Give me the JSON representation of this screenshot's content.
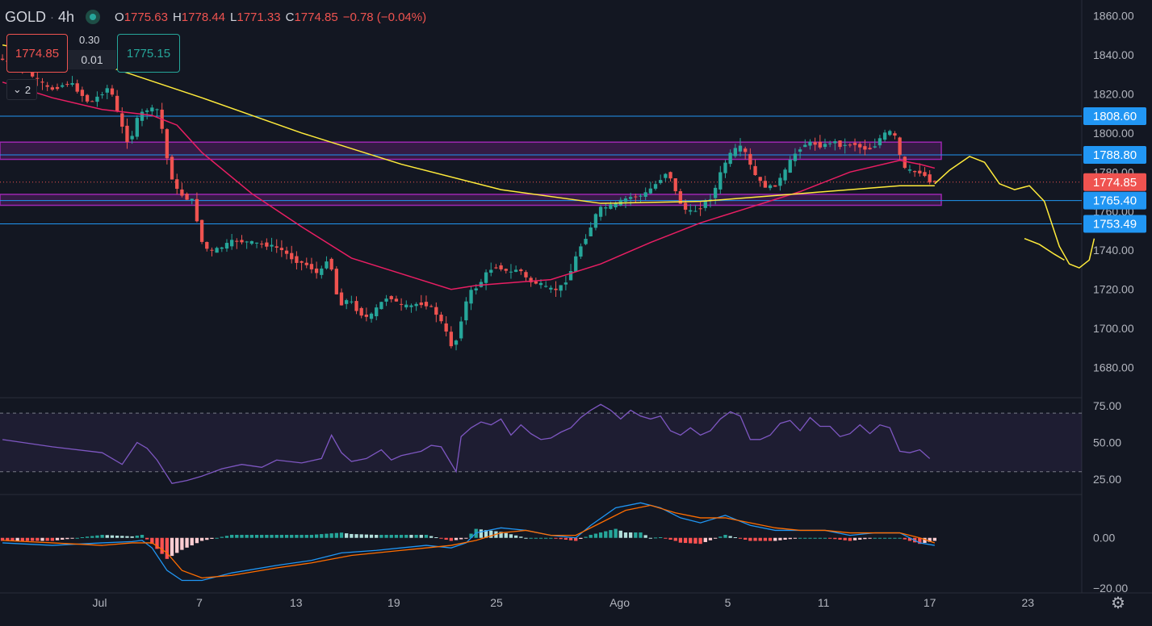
{
  "header": {
    "symbol": "GOLD",
    "separator": "·",
    "timeframe": "4h",
    "open_key": "O",
    "open": "1775.63",
    "high_key": "H",
    "high": "1778.44",
    "low_key": "L",
    "low": "1771.33",
    "close_key": "C",
    "close": "1774.85",
    "change": "−0.78 (−0.04%)"
  },
  "trade": {
    "sell_price": "1774.85",
    "buy_price": "1775.15",
    "spread_top": "0.30",
    "spread": "0.01",
    "collapse_count": "2"
  },
  "colors": {
    "background": "#131722",
    "up": "#26a69a",
    "down": "#ef5350",
    "ma_fast": "#e91e63",
    "ma_slow": "#ffeb3b",
    "hline": "#2196f3",
    "zone": "#9c27b0",
    "rsi": "#7e57c2",
    "macd": "#2196f3",
    "signal": "#ff6d00"
  },
  "chart_data": [
    {
      "type": "candlestick",
      "title": "GOLD · 4h",
      "ylim": [
        1665,
        1868
      ],
      "y_ticks": [
        "1860.00",
        "1840.00",
        "1820.00",
        "1800.00",
        "1780.00",
        "1740.00",
        "1720.00",
        "1700.00",
        "1680.00"
      ],
      "x_ticks": [
        "Jul",
        "7",
        "13",
        "19",
        "25",
        "Ago",
        "5",
        "11",
        "17",
        "23"
      ],
      "current_price": 1774.85,
      "current_price_label": "1774.85",
      "hlines": [
        {
          "value": 1808.6,
          "label": "1808.60"
        },
        {
          "value": 1788.8,
          "label": "1788.80"
        },
        {
          "value": 1765.4,
          "label": "1765.40"
        },
        {
          "value": 1753.49,
          "label": "1753.49"
        }
      ],
      "overlapped_tick_label": "1760.00",
      "zones": [
        [
          1786.5,
          1795.3
        ],
        [
          1763.0,
          1768.6
        ]
      ],
      "price_path": [
        [
          0,
          1838
        ],
        [
          5,
          1832
        ],
        [
          10,
          1822
        ],
        [
          14,
          1826
        ],
        [
          18,
          1815
        ],
        [
          22,
          1824
        ],
        [
          24,
          1806
        ],
        [
          26,
          1793
        ],
        [
          27,
          1805
        ],
        [
          29,
          1812
        ],
        [
          32,
          1812
        ],
        [
          33,
          1792
        ],
        [
          35,
          1772
        ],
        [
          37,
          1767
        ],
        [
          39,
          1765
        ],
        [
          40,
          1746
        ],
        [
          42,
          1739
        ],
        [
          44,
          1741
        ],
        [
          47,
          1745
        ],
        [
          50,
          1744
        ],
        [
          53,
          1743
        ],
        [
          56,
          1741
        ],
        [
          59,
          1735
        ],
        [
          62,
          1732
        ],
        [
          64,
          1727
        ],
        [
          66,
          1738
        ],
        [
          67,
          1723
        ],
        [
          68,
          1712
        ],
        [
          70,
          1715
        ],
        [
          72,
          1708
        ],
        [
          74,
          1705
        ],
        [
          76,
          1712
        ],
        [
          78,
          1717
        ],
        [
          80,
          1712
        ],
        [
          82,
          1711
        ],
        [
          84,
          1713
        ],
        [
          86,
          1712
        ],
        [
          88,
          1706
        ],
        [
          90,
          1695
        ],
        [
          91,
          1688
        ],
        [
          92,
          1700
        ],
        [
          94,
          1718
        ],
        [
          96,
          1722
        ],
        [
          98,
          1730
        ],
        [
          100,
          1732
        ],
        [
          102,
          1728
        ],
        [
          104,
          1731
        ],
        [
          106,
          1724
        ],
        [
          108,
          1723
        ],
        [
          110,
          1720
        ],
        [
          112,
          1720
        ],
        [
          114,
          1726
        ],
        [
          116,
          1740
        ],
        [
          118,
          1749
        ],
        [
          120,
          1761
        ],
        [
          123,
          1763
        ],
        [
          126,
          1767
        ],
        [
          129,
          1768
        ],
        [
          132,
          1775
        ],
        [
          134,
          1781
        ],
        [
          136,
          1766
        ],
        [
          138,
          1759
        ],
        [
          140,
          1761
        ],
        [
          143,
          1768
        ],
        [
          145,
          1783
        ],
        [
          147,
          1791
        ],
        [
          149,
          1793
        ],
        [
          151,
          1780
        ],
        [
          153,
          1773
        ],
        [
          155,
          1772
        ],
        [
          157,
          1778
        ],
        [
          159,
          1788
        ],
        [
          161,
          1794
        ],
        [
          163,
          1795
        ],
        [
          165,
          1793
        ],
        [
          167,
          1796
        ],
        [
          169,
          1793
        ],
        [
          171,
          1795
        ],
        [
          173,
          1792
        ],
        [
          175,
          1792
        ],
        [
          177,
          1799
        ],
        [
          179,
          1801
        ],
        [
          180,
          1795
        ],
        [
          181,
          1782
        ],
        [
          183,
          1780
        ],
        [
          185,
          1780
        ],
        [
          186,
          1776
        ],
        [
          187,
          1775
        ]
      ],
      "ma_fast_path": [
        [
          0,
          1826
        ],
        [
          10,
          1818
        ],
        [
          20,
          1812
        ],
        [
          30,
          1809
        ],
        [
          35,
          1804
        ],
        [
          40,
          1790
        ],
        [
          50,
          1769
        ],
        [
          60,
          1752
        ],
        [
          70,
          1736
        ],
        [
          80,
          1728
        ],
        [
          90,
          1720
        ],
        [
          95,
          1722
        ],
        [
          100,
          1723
        ],
        [
          110,
          1725
        ],
        [
          120,
          1733
        ],
        [
          130,
          1744
        ],
        [
          140,
          1754
        ],
        [
          150,
          1762
        ],
        [
          160,
          1770
        ],
        [
          170,
          1780
        ],
        [
          180,
          1786
        ],
        [
          184,
          1784
        ],
        [
          187,
          1782
        ]
      ],
      "ma_slow_path": [
        [
          0,
          1845
        ],
        [
          20,
          1835
        ],
        [
          40,
          1818
        ],
        [
          60,
          1800
        ],
        [
          80,
          1784
        ],
        [
          100,
          1771
        ],
        [
          120,
          1764
        ],
        [
          140,
          1765
        ],
        [
          160,
          1769
        ],
        [
          180,
          1773
        ],
        [
          187,
          1773
        ]
      ],
      "projection_path": [
        [
          187,
          1774
        ],
        [
          190,
          1781
        ],
        [
          194,
          1788
        ],
        [
          197,
          1785
        ],
        [
          200,
          1774
        ],
        [
          203,
          1771
        ],
        [
          206,
          1773
        ],
        [
          209,
          1765
        ],
        [
          212,
          1742
        ],
        [
          214,
          1733
        ],
        [
          216,
          1731
        ],
        [
          218,
          1735
        ],
        [
          219,
          1746
        ]
      ],
      "projection_extra": [
        [
          205,
          1746
        ],
        [
          208,
          1743
        ],
        [
          211,
          1738
        ],
        [
          213,
          1735
        ]
      ]
    },
    {
      "type": "line",
      "title": "RSI",
      "ylim": [
        15,
        80
      ],
      "y_ticks": [
        "75.00",
        "50.00",
        "25.00"
      ],
      "band": [
        30,
        70
      ],
      "values": [
        [
          0,
          52
        ],
        [
          10,
          47
        ],
        [
          20,
          43
        ],
        [
          24,
          35
        ],
        [
          27,
          50
        ],
        [
          29,
          46
        ],
        [
          31,
          38
        ],
        [
          34,
          22
        ],
        [
          37,
          24
        ],
        [
          40,
          27
        ],
        [
          44,
          32
        ],
        [
          48,
          35
        ],
        [
          52,
          33
        ],
        [
          55,
          38
        ],
        [
          60,
          36
        ],
        [
          64,
          39
        ],
        [
          66,
          55
        ],
        [
          68,
          43
        ],
        [
          70,
          37
        ],
        [
          73,
          39
        ],
        [
          76,
          45
        ],
        [
          78,
          38
        ],
        [
          80,
          41
        ],
        [
          84,
          44
        ],
        [
          86,
          48
        ],
        [
          88,
          47
        ],
        [
          91,
          30
        ],
        [
          92,
          54
        ],
        [
          94,
          60
        ],
        [
          96,
          64
        ],
        [
          98,
          62
        ],
        [
          100,
          66
        ],
        [
          102,
          55
        ],
        [
          104,
          62
        ],
        [
          106,
          56
        ],
        [
          108,
          52
        ],
        [
          110,
          53
        ],
        [
          112,
          57
        ],
        [
          114,
          60
        ],
        [
          116,
          67
        ],
        [
          118,
          72
        ],
        [
          120,
          76
        ],
        [
          122,
          72
        ],
        [
          124,
          66
        ],
        [
          126,
          72
        ],
        [
          128,
          68
        ],
        [
          130,
          66
        ],
        [
          132,
          68
        ],
        [
          134,
          58
        ],
        [
          136,
          55
        ],
        [
          138,
          60
        ],
        [
          140,
          55
        ],
        [
          142,
          58
        ],
        [
          144,
          66
        ],
        [
          146,
          71
        ],
        [
          148,
          68
        ],
        [
          150,
          52
        ],
        [
          152,
          52
        ],
        [
          154,
          55
        ],
        [
          156,
          63
        ],
        [
          158,
          65
        ],
        [
          160,
          58
        ],
        [
          162,
          67
        ],
        [
          164,
          61
        ],
        [
          166,
          61
        ],
        [
          168,
          54
        ],
        [
          170,
          56
        ],
        [
          172,
          62
        ],
        [
          174,
          56
        ],
        [
          176,
          62
        ],
        [
          178,
          60
        ],
        [
          180,
          44
        ],
        [
          182,
          43
        ],
        [
          184,
          45
        ],
        [
          186,
          39
        ]
      ]
    },
    {
      "type": "histogram+line",
      "title": "MACD",
      "ylim": [
        -22,
        17
      ],
      "y_ticks": [
        "0.00",
        "-20.00"
      ],
      "macd": [
        [
          0,
          -2
        ],
        [
          10,
          -3
        ],
        [
          20,
          -2
        ],
        [
          26,
          -1.5
        ],
        [
          28,
          -1
        ],
        [
          30,
          -4
        ],
        [
          33,
          -13
        ],
        [
          36,
          -17
        ],
        [
          40,
          -17
        ],
        [
          46,
          -14
        ],
        [
          55,
          -11
        ],
        [
          62,
          -9
        ],
        [
          68,
          -6
        ],
        [
          75,
          -5
        ],
        [
          85,
          -3
        ],
        [
          90,
          -4
        ],
        [
          93,
          -2
        ],
        [
          95,
          2
        ],
        [
          100,
          4
        ],
        [
          105,
          3
        ],
        [
          110,
          1
        ],
        [
          115,
          0
        ],
        [
          118,
          5
        ],
        [
          123,
          12
        ],
        [
          128,
          14
        ],
        [
          132,
          12
        ],
        [
          136,
          8
        ],
        [
          140,
          6
        ],
        [
          145,
          9
        ],
        [
          150,
          5
        ],
        [
          155,
          3
        ],
        [
          160,
          3
        ],
        [
          165,
          3
        ],
        [
          170,
          1
        ],
        [
          175,
          2
        ],
        [
          180,
          2
        ],
        [
          184,
          -2
        ],
        [
          187,
          -3
        ]
      ],
      "signal": [
        [
          0,
          -1
        ],
        [
          10,
          -2
        ],
        [
          20,
          -3
        ],
        [
          26,
          -2
        ],
        [
          30,
          -2
        ],
        [
          33,
          -6
        ],
        [
          36,
          -13
        ],
        [
          40,
          -16
        ],
        [
          46,
          -15
        ],
        [
          55,
          -12
        ],
        [
          62,
          -10
        ],
        [
          70,
          -7
        ],
        [
          80,
          -5
        ],
        [
          90,
          -3
        ],
        [
          95,
          -1
        ],
        [
          100,
          2
        ],
        [
          105,
          3
        ],
        [
          110,
          1
        ],
        [
          115,
          1
        ],
        [
          120,
          6
        ],
        [
          125,
          11
        ],
        [
          130,
          13
        ],
        [
          135,
          10
        ],
        [
          140,
          8
        ],
        [
          145,
          8
        ],
        [
          150,
          6
        ],
        [
          155,
          4
        ],
        [
          160,
          3
        ],
        [
          165,
          3
        ],
        [
          170,
          2
        ],
        [
          175,
          2
        ],
        [
          180,
          2
        ],
        [
          184,
          0
        ],
        [
          187,
          -2
        ]
      ]
    }
  ]
}
